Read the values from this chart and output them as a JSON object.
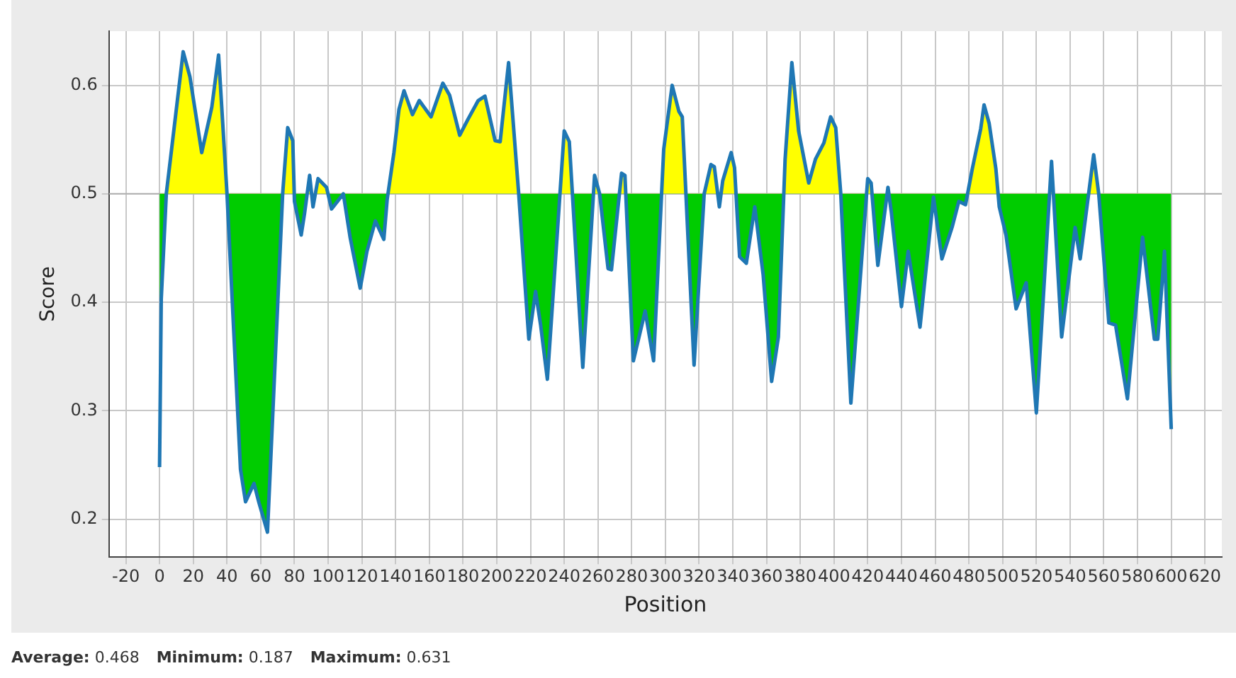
{
  "chart_data": {
    "type": "line",
    "xlabel": "Position",
    "ylabel": "Score",
    "x": [
      0,
      1,
      4,
      14,
      18,
      25,
      31,
      35,
      40,
      48,
      51,
      56,
      59,
      64,
      73,
      76,
      79,
      80,
      84,
      86,
      89,
      91,
      94,
      99,
      102,
      104,
      109,
      113,
      119,
      123,
      128,
      133,
      135,
      139,
      142,
      145,
      150,
      154,
      161,
      168,
      172,
      178,
      183,
      189,
      193,
      199,
      202,
      207,
      213,
      219,
      223,
      226,
      230,
      240,
      243,
      251,
      258,
      261,
      266,
      268,
      274,
      276,
      281,
      288,
      293,
      299,
      304,
      308,
      310,
      317,
      323,
      327,
      329,
      332,
      334,
      339,
      341,
      344,
      348,
      353,
      358,
      363,
      367,
      371,
      375,
      379,
      385,
      389,
      394,
      398,
      401,
      404,
      410,
      420,
      422,
      426,
      432,
      434,
      440,
      444,
      451,
      459,
      464,
      470,
      474,
      478,
      482,
      487,
      489,
      492,
      496,
      498,
      502,
      508,
      514,
      520,
      529,
      535,
      543,
      546,
      554,
      557,
      563,
      567,
      574,
      583,
      590,
      592,
      596,
      600
    ],
    "series": [
      {
        "color": "#1f77b4",
        "values": [
          0.248,
          0.403,
          0.5,
          0.631,
          0.608,
          0.538,
          0.58,
          0.628,
          0.5,
          0.246,
          0.216,
          0.233,
          0.215,
          0.188,
          0.5,
          0.561,
          0.549,
          0.493,
          0.462,
          0.482,
          0.517,
          0.488,
          0.514,
          0.506,
          0.486,
          0.49,
          0.5,
          0.46,
          0.413,
          0.447,
          0.475,
          0.458,
          0.495,
          0.538,
          0.578,
          0.595,
          0.573,
          0.586,
          0.571,
          0.602,
          0.591,
          0.554,
          0.569,
          0.586,
          0.59,
          0.549,
          0.548,
          0.621,
          0.5,
          0.366,
          0.41,
          0.379,
          0.329,
          0.558,
          0.548,
          0.34,
          0.517,
          0.5,
          0.431,
          0.43,
          0.519,
          0.517,
          0.346,
          0.392,
          0.346,
          0.541,
          0.6,
          0.576,
          0.571,
          0.342,
          0.5,
          0.527,
          0.525,
          0.488,
          0.512,
          0.538,
          0.524,
          0.442,
          0.436,
          0.488,
          0.425,
          0.327,
          0.368,
          0.532,
          0.621,
          0.558,
          0.51,
          0.532,
          0.547,
          0.571,
          0.561,
          0.5,
          0.307,
          0.514,
          0.51,
          0.434,
          0.506,
          0.483,
          0.396,
          0.447,
          0.377,
          0.497,
          0.44,
          0.469,
          0.493,
          0.49,
          0.523,
          0.56,
          0.582,
          0.565,
          0.523,
          0.488,
          0.462,
          0.394,
          0.418,
          0.298,
          0.53,
          0.368,
          0.469,
          0.44,
          0.536,
          0.5,
          0.381,
          0.379,
          0.311,
          0.46,
          0.366,
          0.366,
          0.447,
          0.283
        ]
      }
    ],
    "ref_lines": [
      {
        "axis": "y",
        "value": 0.5,
        "color": "#b0b0b0"
      }
    ],
    "xlim": [
      -30,
      630
    ],
    "xticks": [
      -20,
      0,
      20,
      40,
      60,
      80,
      100,
      120,
      140,
      160,
      180,
      200,
      220,
      240,
      260,
      280,
      300,
      320,
      340,
      360,
      380,
      400,
      420,
      440,
      460,
      480,
      500,
      520,
      540,
      560,
      580,
      600,
      620
    ],
    "ylim": [
      0.165,
      0.65
    ],
    "yticks": [
      0.2,
      0.3,
      0.4,
      0.5,
      0.6
    ],
    "grid": true,
    "legend": false,
    "marker": "none",
    "line_style": "solid",
    "annotations": [
      "Average: 0.468",
      "Minimum: 0.187",
      "Maximum: 0.631"
    ]
  }
}
